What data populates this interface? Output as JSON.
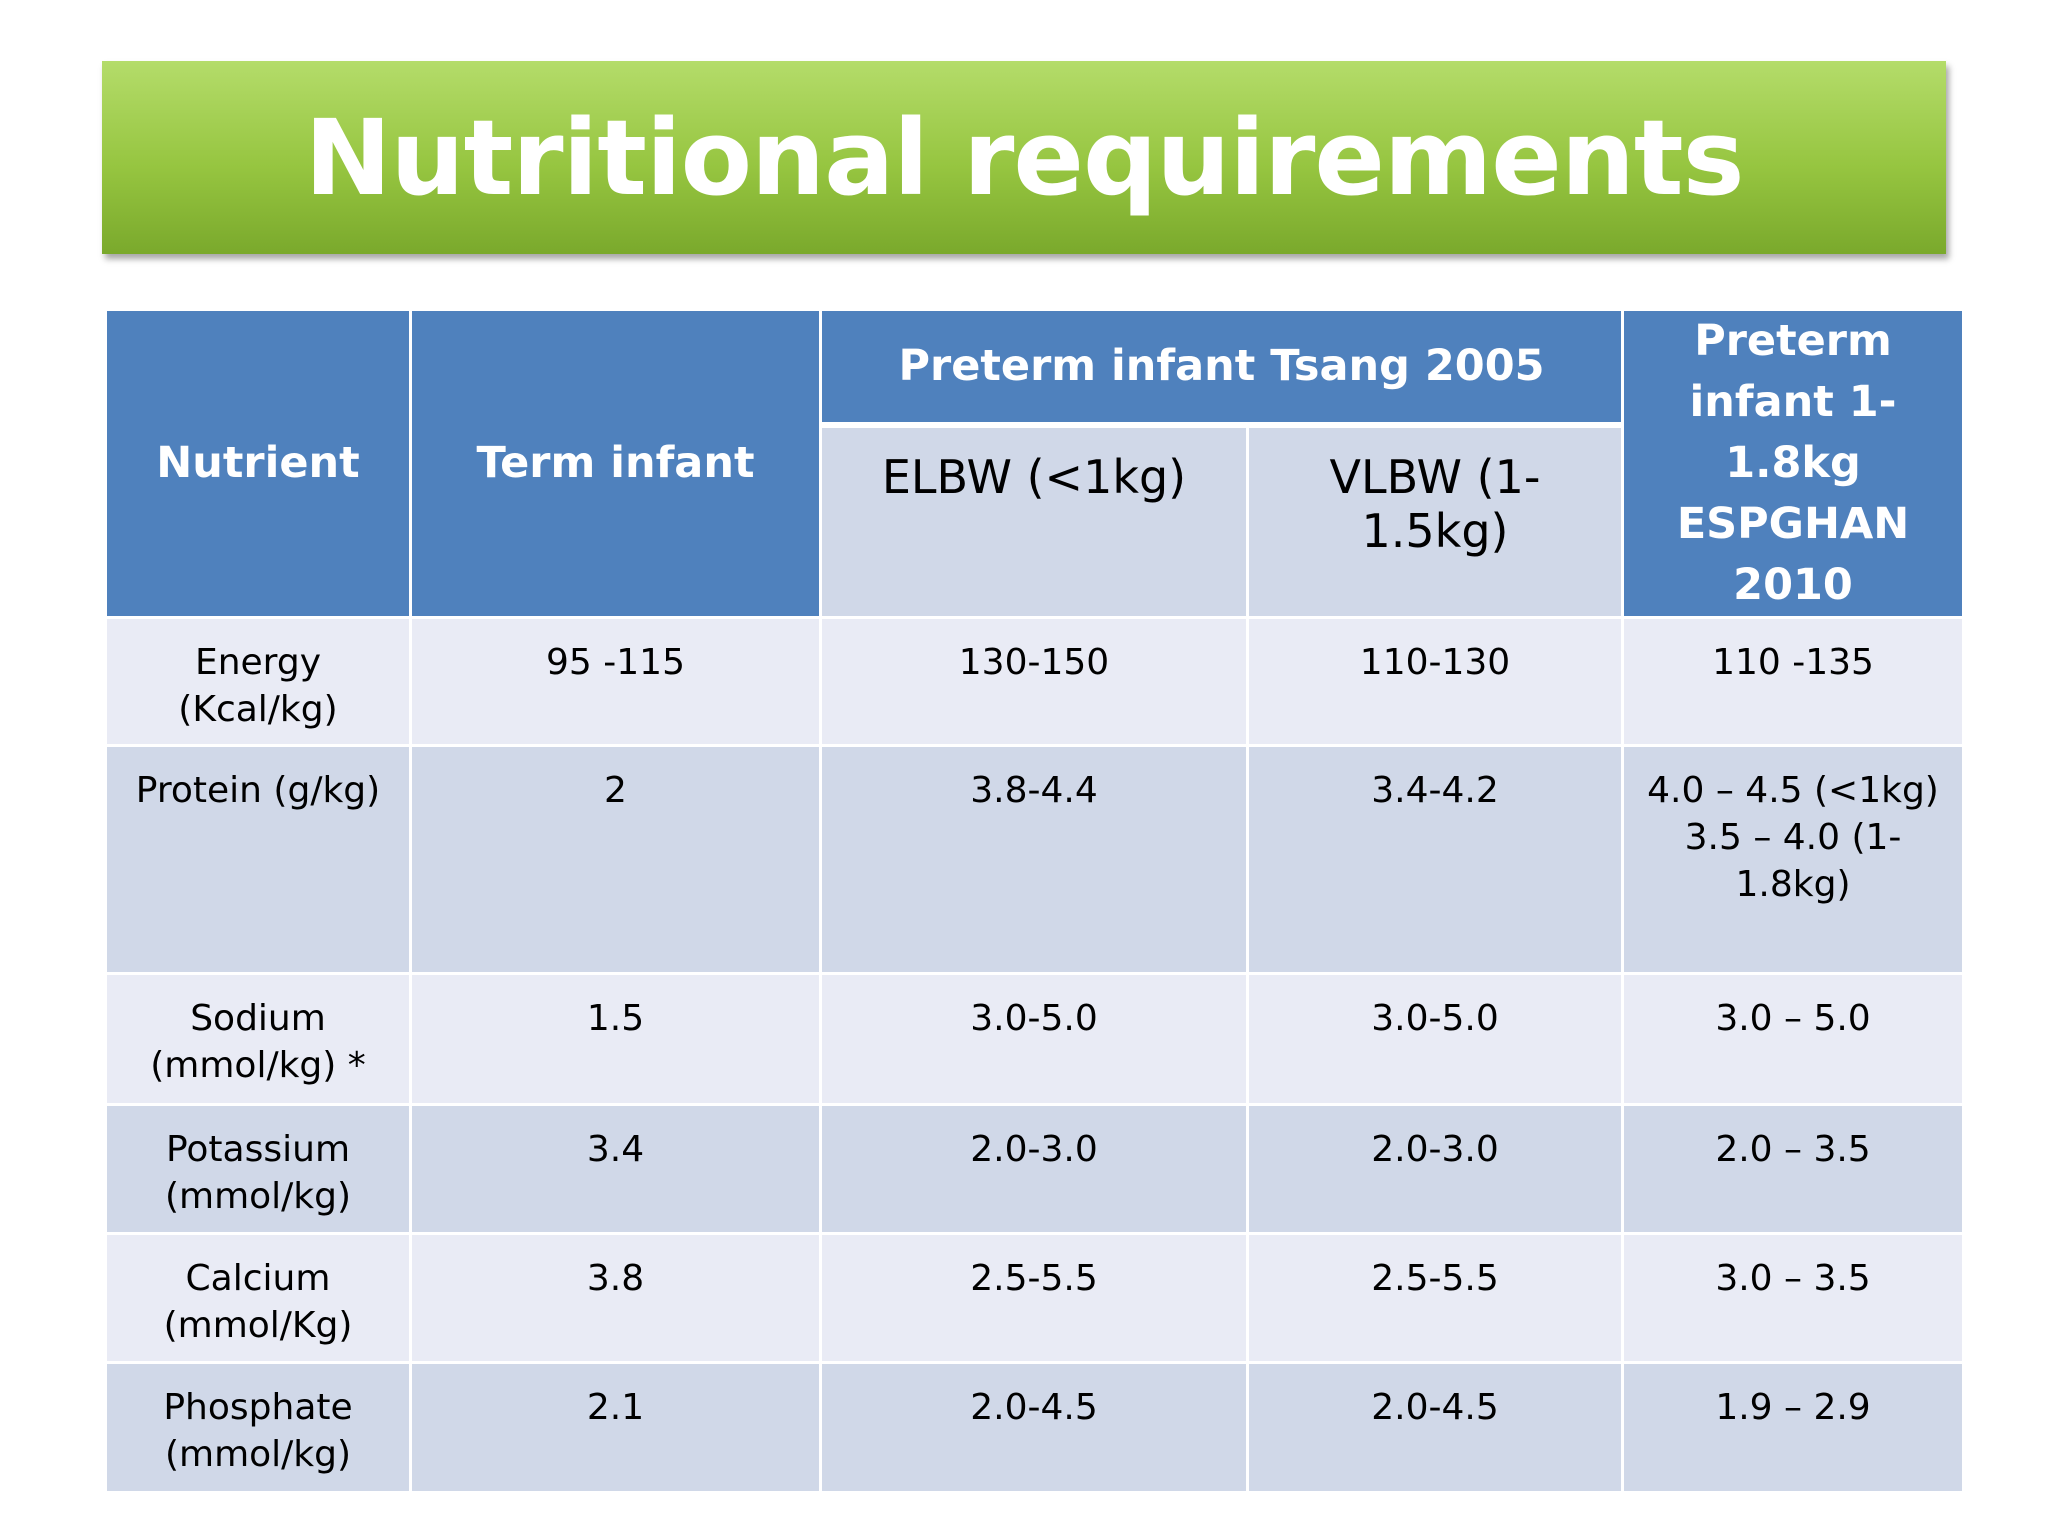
{
  "header": {
    "title": "Nutritional requirements"
  },
  "table": {
    "columns": [
      "Nutrient",
      "Term infant",
      "Preterm infant Tsang 2005",
      "Preterm infant 1-1.8kg ESPGHAN 2010"
    ],
    "subcolumns": [
      "ELBW (<1kg)",
      "VLBW (1-1.5kg)"
    ],
    "rows": [
      [
        "Energy (Kcal/kg)",
        "95 -115",
        "130-150",
        "110-130",
        "110 -135"
      ],
      [
        "Protein (g/kg)",
        "2",
        "3.8-4.4",
        "3.4-4.2",
        [
          "4.0 – 4.5 (<1kg)",
          "3.5 – 4.0 (1-1.8kg)"
        ]
      ],
      [
        "Sodium (mmol/kg) *",
        "1.5",
        "3.0-5.0",
        "3.0-5.0",
        "3.0 – 5.0"
      ],
      [
        "Potassium (mmol/kg)",
        "3.4",
        "2.0-3.0",
        "2.0-3.0",
        "2.0 – 3.5"
      ],
      [
        "Calcium (mmol/Kg)",
        "3.8",
        "2.5-5.5",
        "2.5-5.5",
        "3.0 – 3.5"
      ],
      [
        "Phosphate (mmol/kg)",
        "2.1",
        "2.0-4.5",
        "2.0-4.5",
        "1.9 – 2.9"
      ]
    ]
  }
}
